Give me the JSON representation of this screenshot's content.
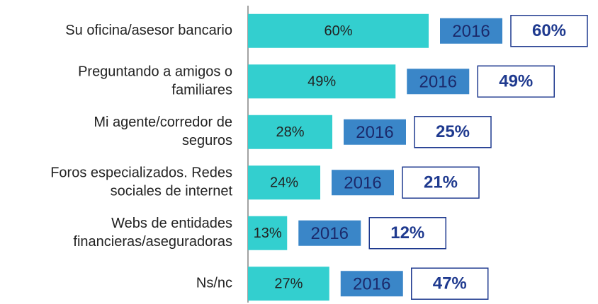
{
  "chart_data": {
    "type": "bar",
    "orientation": "horizontal",
    "categories": [
      [
        "Su oficina/asesor bancario"
      ],
      [
        "Preguntando a amigos o",
        "familiares"
      ],
      [
        "Mi agente/corredor de",
        "seguros"
      ],
      [
        "Foros especializados. Redes",
        "sociales de internet"
      ],
      [
        "Webs de entidades",
        "financieras/aseguradoras"
      ],
      [
        "Ns/nc"
      ]
    ],
    "series": [
      {
        "color": "#33cfcf",
        "values": [
          60,
          49,
          28,
          24,
          13,
          27
        ],
        "value_labels": [
          "60%",
          "49%",
          "28%",
          "24%",
          "13%",
          "27%"
        ]
      },
      {
        "name": "2016",
        "color": "#3a86c8",
        "values": [
          60,
          49,
          25,
          21,
          12,
          47
        ],
        "value_labels": [
          "60%",
          "49%",
          "25%",
          "21%",
          "12%",
          "47%"
        ]
      }
    ]
  }
}
